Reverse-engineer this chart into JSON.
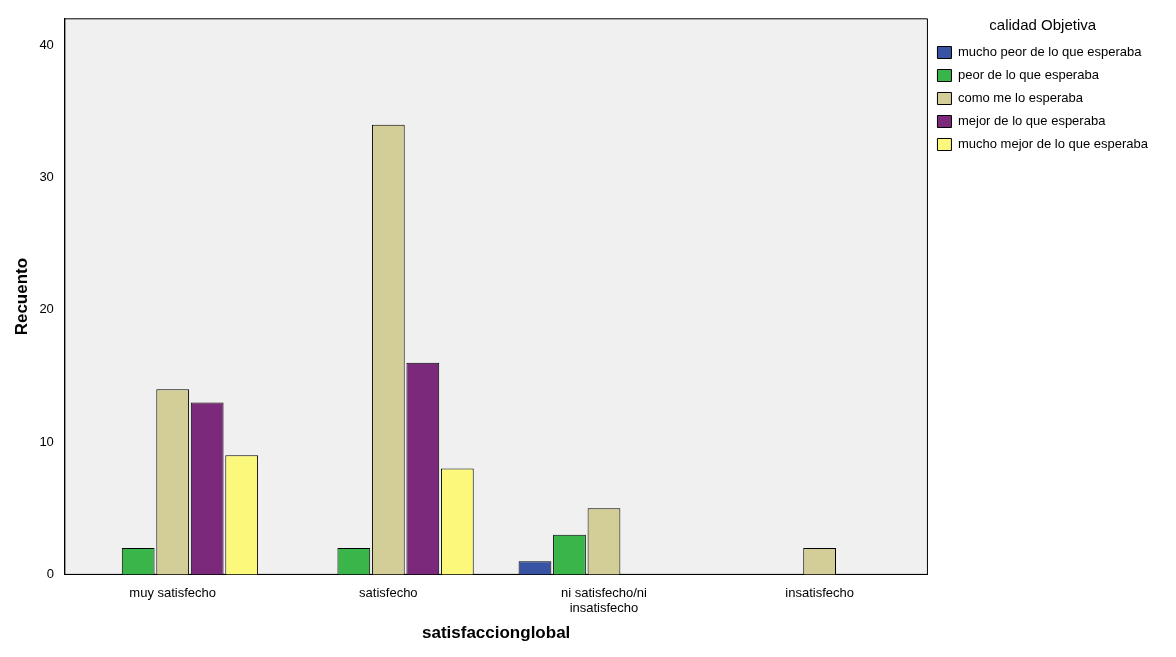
{
  "chart_data": {
    "type": "bar",
    "xlabel": "satisfaccionglobal",
    "ylabel": "Recuento",
    "legend_title": "calidad Objetiva",
    "legend": "right",
    "categories": [
      "muy satisfecho",
      "satisfecho",
      "ni satisfecho/ni insatisfecho",
      "insatisfecho"
    ],
    "series": [
      {
        "name": "mucho peor de lo que esperaba",
        "color": "#3953a4",
        "values": [
          null,
          null,
          1,
          null
        ]
      },
      {
        "name": "peor de lo que esperaba",
        "color": "#3ab54a",
        "values": [
          2,
          2,
          3,
          null
        ]
      },
      {
        "name": "como me lo esperaba",
        "color": "#d3ce97",
        "values": [
          14,
          34,
          5,
          2
        ]
      },
      {
        "name": "mejor de lo que esperaba",
        "color": "#7b2a7b",
        "values": [
          13,
          16,
          null,
          null
        ]
      },
      {
        "name": "mucho mejor de lo que esperaba",
        "color": "#fbf87c",
        "values": [
          9,
          8,
          null,
          null
        ]
      }
    ],
    "ylim": [
      0,
      42
    ],
    "yticks": [
      0,
      10,
      20,
      30,
      40
    ],
    "grid": false
  }
}
